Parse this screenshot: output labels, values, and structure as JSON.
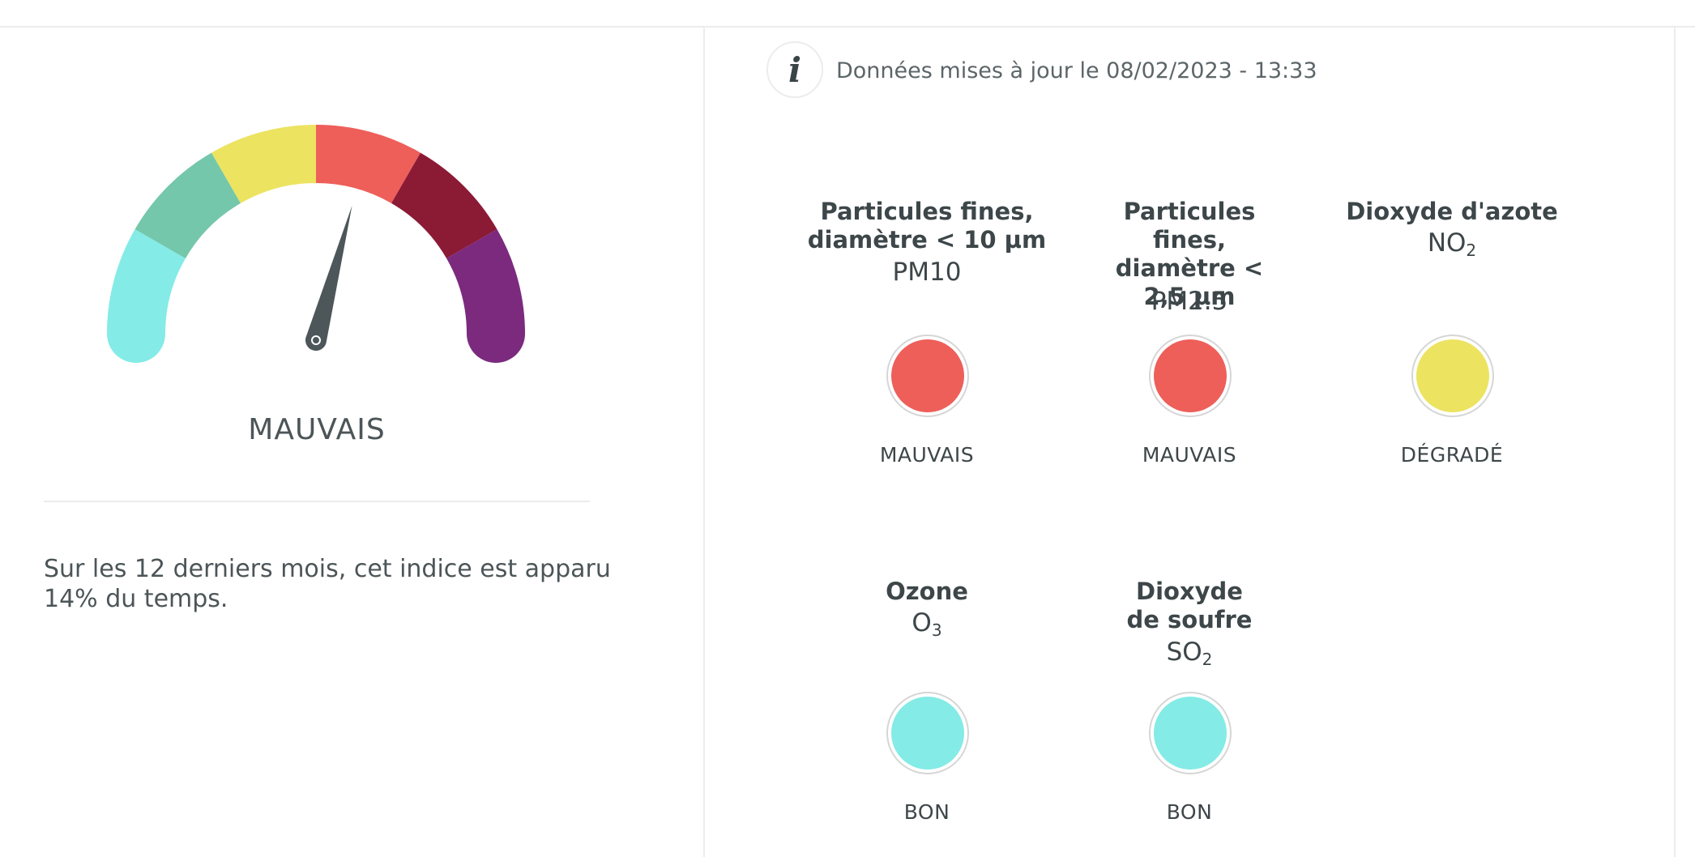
{
  "gauge": {
    "status": "MAUVAIS",
    "level": 4,
    "levels": 6,
    "segment_colors": [
      "#84ebe6",
      "#74c7aa",
      "#ece361",
      "#ee5f5a",
      "#8b1a35",
      "#7b2a7e"
    ],
    "needle_color": "#4d5659"
  },
  "history": {
    "text": "Sur les 12 derniers mois, cet indice est apparu 14% du temps."
  },
  "update": {
    "icon": "info-icon",
    "icon_glyph": "i",
    "text": "Données mises à jour le 08/02/2023 - 13:33"
  },
  "pollutants": [
    {
      "name": "Particules fines, diamètre < 10 µm",
      "formula": "PM10",
      "formula_sub": "",
      "status": "MAUVAIS",
      "color": "#ee5f5a"
    },
    {
      "name": "Particules fines, diamètre < 2,5 µm",
      "formula": "PM2.5",
      "formula_sub": "",
      "status": "MAUVAIS",
      "color": "#ee5f5a"
    },
    {
      "name": "Dioxyde d'azote",
      "formula": "NO",
      "formula_sub": "2",
      "status": "DÉGRADÉ",
      "color": "#ece361"
    },
    {
      "name": "Ozone",
      "formula": "O",
      "formula_sub": "3",
      "status": "BON",
      "color": "#84ebe6"
    },
    {
      "name": "Dioxyde de soufre",
      "formula": "SO",
      "formula_sub": "2",
      "status": "BON",
      "color": "#84ebe6"
    }
  ]
}
